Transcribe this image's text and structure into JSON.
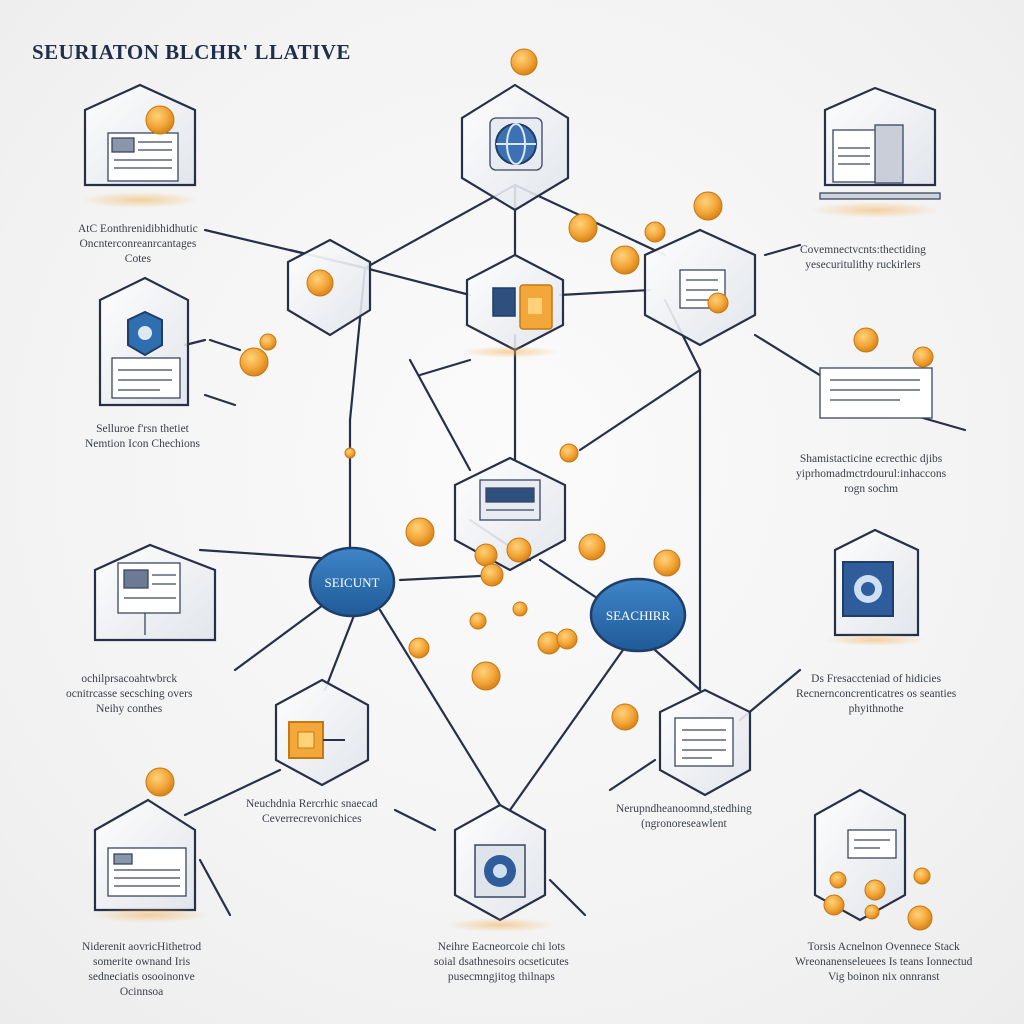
{
  "title": "SEURIATON BLCHR' LLATIVE",
  "pills": {
    "left": "SEICUNT",
    "right": "SEACHIRR"
  },
  "captions": {
    "tl": [
      "AtC Eonthrenidibhidhutic",
      "Oncnterconreanrcantages",
      "Cotes"
    ],
    "tr": [
      "Covemnectvcnts:thectiding",
      "yesecuritulithy ruckirlers"
    ],
    "ml": [
      "Selluroe f'rsn thetiet",
      "Nemtion Icon Chechions"
    ],
    "mr": [
      "Shamistacticine ecrecthic djibs",
      "yiprhomadmctrdourul:inhaccons",
      "rogn sochm"
    ],
    "l3": [
      "ochilprsacoahtwbrck",
      "ocnitrcasse secsching overs",
      "Neihy conthes"
    ],
    "r3": [
      "Ds Fresaccteniad of hidicies",
      "Recnernconcrenticatres os seanties",
      "phyithnothe"
    ],
    "c1": [
      "Neuchdnia Rercrhic snaecad",
      "Ceverrecrevonichices"
    ],
    "c2": [
      "Nerupndheanoomnd,stedhing",
      "(ngronoreseawlent"
    ],
    "bl": [
      "Niderenit aovricHithetrod",
      "somerite ownand Iris",
      "sedneciatis osooinonve",
      "Ocinnsoa"
    ],
    "bc": [
      "Neihre Eacneorcoie chi lots",
      "soial dsathnesoirs ocseticutes",
      "pusecmngjitog thilnaps"
    ],
    "br": [
      "Torsis Acnelnon Ovennece Stack",
      "Wreonanenseleuees Is teans Ionnectud",
      "Vig boinon nix onnranst"
    ]
  },
  "colors": {
    "navy": "#1f2e4a",
    "line": "#273048",
    "blue": "#2f6fb0",
    "orange": "#f3a73b"
  },
  "icons": [
    "document-icon",
    "globe-icon",
    "padlock-icon",
    "shield-icon",
    "server-icon",
    "monitor-icon",
    "safe-icon",
    "token-icon"
  ]
}
